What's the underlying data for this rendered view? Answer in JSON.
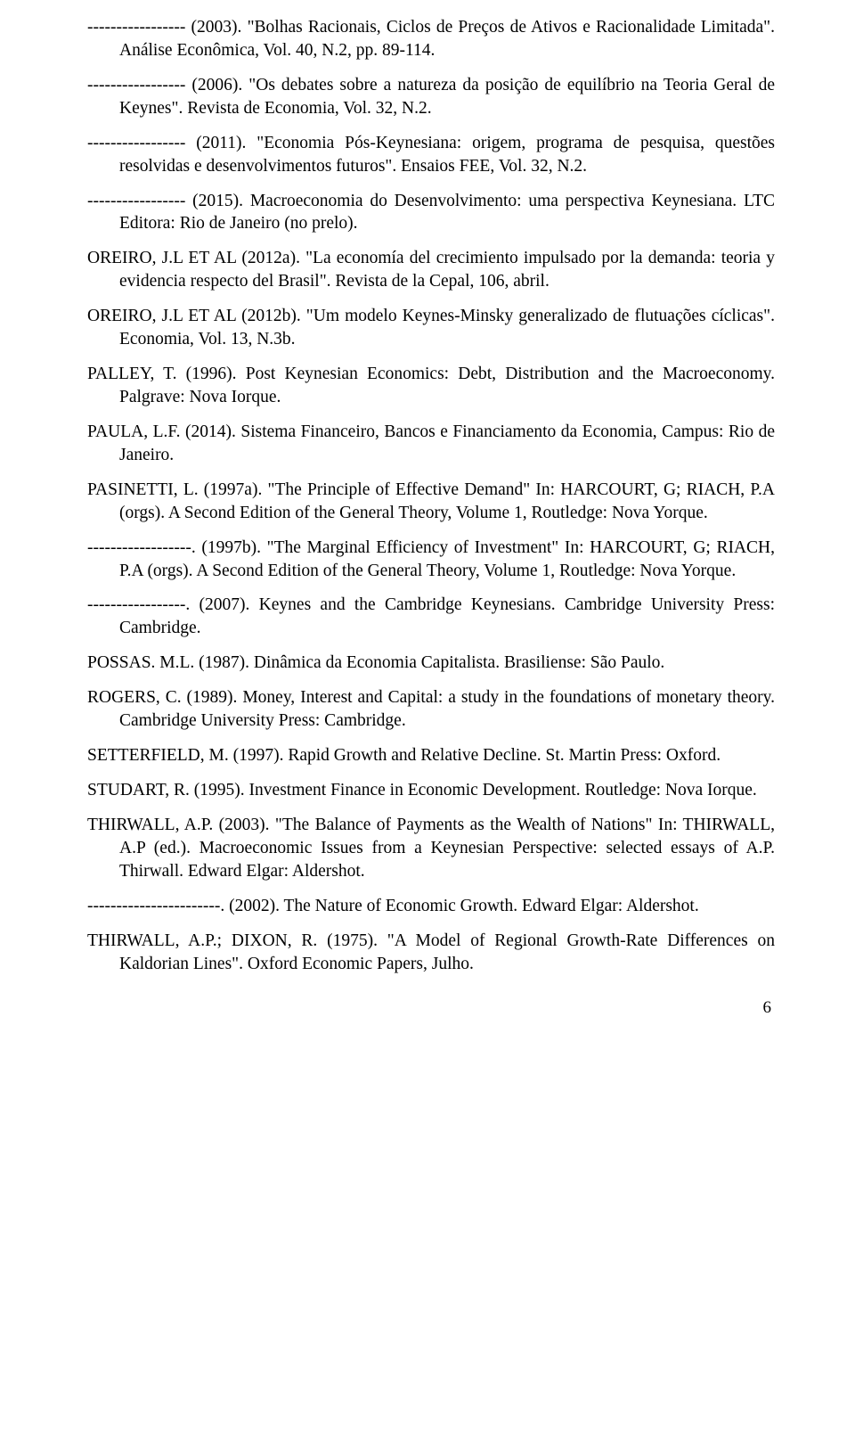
{
  "refs": [
    "----------------- (2003). \"Bolhas Racionais, Ciclos de Preços de Ativos e Racionalidade Limitada\". Análise Econômica, Vol. 40, N.2, pp. 89-114.",
    "----------------- (2006). \"Os debates sobre a natureza da posição de equilíbrio na Teoria Geral de Keynes\". Revista de Economia, Vol. 32, N.2.",
    "----------------- (2011). \"Economia Pós-Keynesiana: origem, programa de pesquisa, questões resolvidas e desenvolvimentos futuros\". Ensaios FEE, Vol. 32, N.2.",
    "----------------- (2015). Macroeconomia do Desenvolvimento: uma perspectiva Keynesiana. LTC Editora: Rio de Janeiro (no prelo).",
    "OREIRO, J.L ET AL (2012a). \"La economía del crecimiento impulsado por la demanda: teoria y evidencia respecto del Brasil\". Revista de la Cepal, 106, abril.",
    "OREIRO, J.L ET AL (2012b). \"Um modelo Keynes-Minsky generalizado de flutuações cíclicas\". Economia, Vol. 13, N.3b.",
    "PALLEY, T. (1996). Post Keynesian Economics: Debt, Distribution and the Macroeconomy. Palgrave: Nova Iorque.",
    "PAULA, L.F. (2014). Sistema Financeiro, Bancos e Financiamento da Economia, Campus: Rio de Janeiro.",
    "PASINETTI, L. (1997a). \"The Principle of Effective Demand\" In: HARCOURT, G; RIACH, P.A (orgs). A Second Edition of the General Theory, Volume 1, Routledge: Nova Yorque.",
    "------------------. (1997b). \"The Marginal Efficiency of Investment\" In: HARCOURT, G; RIACH, P.A (orgs). A Second Edition of the General Theory, Volume 1, Routledge: Nova Yorque.",
    "-----------------. (2007). Keynes and the Cambridge Keynesians. Cambridge University Press: Cambridge.",
    "POSSAS. M.L. (1987). Dinâmica da Economia Capitalista. Brasiliense: São Paulo.",
    "ROGERS, C. (1989). Money, Interest and Capital: a study in the foundations of monetary theory. Cambridge University Press: Cambridge.",
    "SETTERFIELD, M. (1997). Rapid Growth and Relative Decline. St. Martin Press: Oxford.",
    "STUDART, R. (1995). Investment Finance in Economic Development. Routledge: Nova Iorque.",
    "THIRWALL, A.P. (2003). \"The Balance of Payments as the Wealth of Nations\" In: THIRWALL, A.P (ed.). Macroeconomic Issues from a Keynesian Perspective: selected essays of A.P. Thirwall. Edward Elgar: Aldershot.",
    "-----------------------. (2002). The Nature of Economic Growth. Edward Elgar: Aldershot.",
    "THIRWALL, A.P.; DIXON, R. (1975). \"A Model of Regional Growth-Rate Differences on Kaldorian Lines\". Oxford Economic Papers, Julho."
  ],
  "page_number": "6"
}
